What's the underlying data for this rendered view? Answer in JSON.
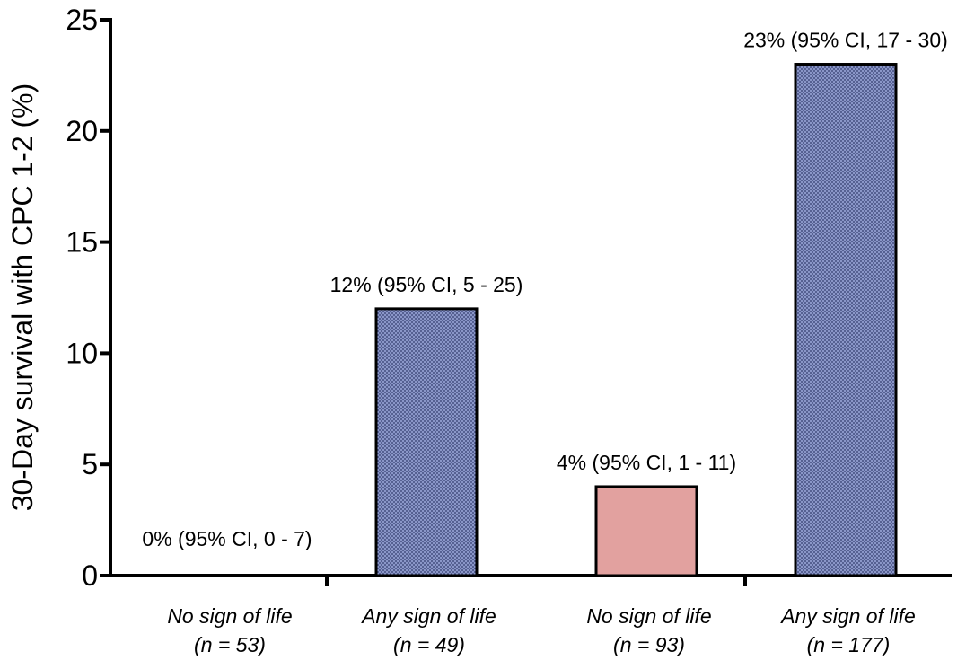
{
  "chart_data": {
    "type": "bar",
    "ylabel": "30-Day survival with CPC 1-2 (%)",
    "xlabel": "",
    "title": "",
    "ylim": [
      0,
      25
    ],
    "yticks": [
      0,
      5,
      10,
      15,
      20,
      25
    ],
    "grid": false,
    "legend": "none",
    "categories": [
      {
        "line1": "No sign of life",
        "line2": "(n = 53)"
      },
      {
        "line1": "Any sign of life",
        "line2": "(n = 49)"
      },
      {
        "line1": "No sign of life",
        "line2": "(n = 93)"
      },
      {
        "line1": "Any sign of life",
        "line2": "(n = 177)"
      }
    ],
    "values": [
      0,
      12,
      4,
      23
    ],
    "data_labels": [
      "0% (95% CI, 0 - 7)",
      "12% (95% CI, 5 - 25)",
      "4% (95% CI, 1 - 11)",
      "23% (95% CI, 17 - 30)"
    ],
    "bar_styles": [
      "dotted-blue",
      "dotted-blue",
      "solid-pink",
      "dotted-blue"
    ],
    "colors": {
      "dotted_blue_fill": "#8a96c8",
      "dotted_blue_dots": "#2a3566",
      "solid_pink_fill": "#e2a19f"
    }
  }
}
